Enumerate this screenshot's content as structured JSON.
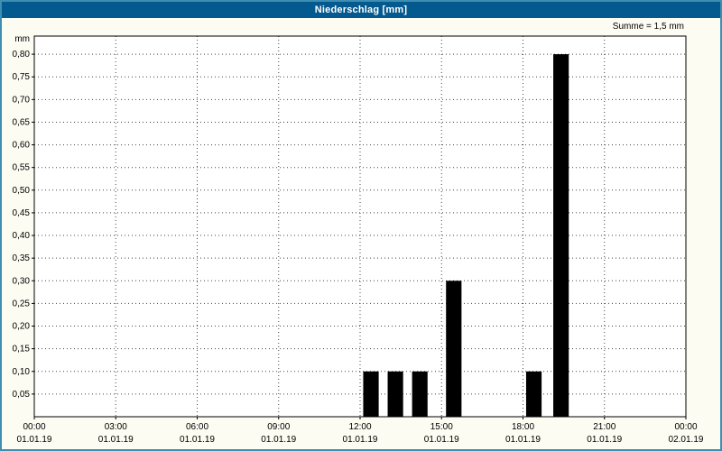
{
  "window": {
    "title": "Niederschlag [mm]"
  },
  "summary": {
    "label": "Summe = 1,5 mm"
  },
  "colors": {
    "frame": "#3d8eb0",
    "titlebar_bg": "#04598f",
    "titlebar_text": "#ffffff",
    "page_bg": "#fcfcf2",
    "plot_bg": "#ffffff",
    "grid": "#444444",
    "axis": "#000000",
    "text": "#000000"
  },
  "chart_data": {
    "type": "bar",
    "title": "Niederschlag [mm]",
    "xlabel": "",
    "ylabel": "mm",
    "ylim": [
      0,
      0.84
    ],
    "xlim_hours": [
      0,
      24
    ],
    "grid": true,
    "legend": null,
    "yticks": [
      0.05,
      0.1,
      0.15,
      0.2,
      0.25,
      0.3,
      0.35,
      0.4,
      0.45,
      0.5,
      0.55,
      0.6,
      0.65,
      0.7,
      0.75,
      0.8
    ],
    "ytick_labels": [
      "0,05",
      "0,10",
      "0,15",
      "0,20",
      "0,25",
      "0,30",
      "0,35",
      "0,40",
      "0,45",
      "0,50",
      "0,55",
      "0,60",
      "0,65",
      "0,70",
      "0,75",
      "0,80"
    ],
    "xticks": [
      {
        "hour": 0,
        "time": "00:00",
        "date": "01.01.19"
      },
      {
        "hour": 3,
        "time": "03:00",
        "date": "01.01.19"
      },
      {
        "hour": 6,
        "time": "06:00",
        "date": "01.01.19"
      },
      {
        "hour": 9,
        "time": "09:00",
        "date": "01.01.19"
      },
      {
        "hour": 12,
        "time": "12:00",
        "date": "01.01.19"
      },
      {
        "hour": 15,
        "time": "15:00",
        "date": "01.01.19"
      },
      {
        "hour": 18,
        "time": "18:00",
        "date": "01.01.19"
      },
      {
        "hour": 21,
        "time": "21:00",
        "date": "01.01.19"
      },
      {
        "hour": 24,
        "time": "00:00",
        "date": "02.01.19"
      }
    ],
    "bars": [
      {
        "hour": 12.4,
        "value": 0.1
      },
      {
        "hour": 13.3,
        "value": 0.1
      },
      {
        "hour": 14.2,
        "value": 0.1
      },
      {
        "hour": 15.45,
        "value": 0.3
      },
      {
        "hour": 18.4,
        "value": 0.1
      },
      {
        "hour": 19.4,
        "value": 0.8
      }
    ],
    "bar_width_hours": 0.57,
    "bar_color": "#000000",
    "sum_mm": 1.5
  }
}
